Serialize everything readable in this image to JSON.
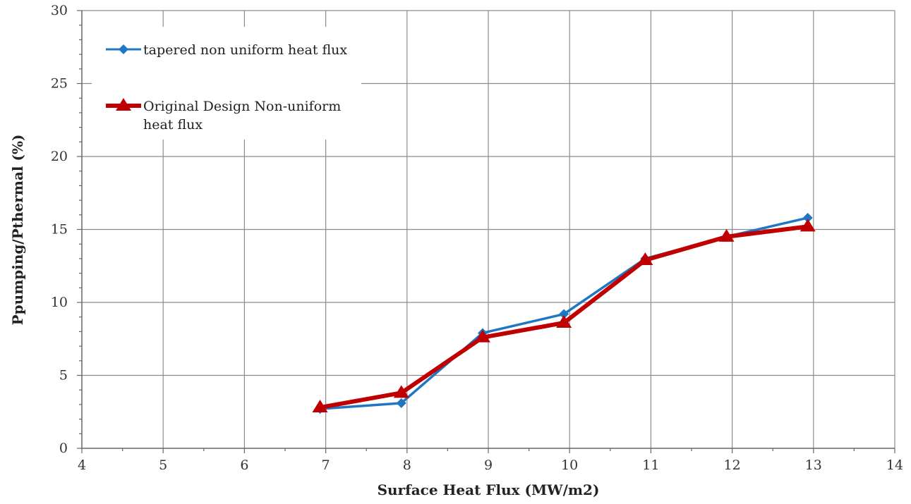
{
  "chart_data": {
    "type": "line",
    "title": "",
    "xlabel": "Surface Heat Flux (MW/m2)",
    "ylabel": "Ppumping/Pthermal  (%)",
    "xlim": [
      4,
      14
    ],
    "ylim": [
      0,
      30
    ],
    "x_ticks": [
      "4",
      "5",
      "6",
      "7",
      "8",
      "9",
      "10",
      "11",
      "12",
      "13",
      "14"
    ],
    "y_ticks": [
      "0",
      "5",
      "10",
      "15",
      "20",
      "25",
      "30"
    ],
    "grid": true,
    "legend_position": "top-left",
    "series": [
      {
        "name": "tapered non uniform heat flux",
        "color": "#1f77c4",
        "marker": "diamond",
        "x": [
          6.93,
          7.93,
          8.93,
          9.93,
          10.93,
          11.93,
          12.93
        ],
        "y": [
          2.7,
          3.1,
          7.9,
          9.2,
          13.0,
          14.5,
          15.8
        ]
      },
      {
        "name": "Original Design Non-uniform heat flux",
        "legend_lines": [
          "Original Design Non-uniform",
          "heat flux"
        ],
        "color": "#c00000",
        "marker": "triangle",
        "x": [
          6.93,
          7.93,
          8.93,
          9.93,
          10.93,
          11.93,
          12.93
        ],
        "y": [
          2.8,
          3.8,
          7.6,
          8.6,
          12.9,
          14.5,
          15.2
        ]
      }
    ]
  }
}
